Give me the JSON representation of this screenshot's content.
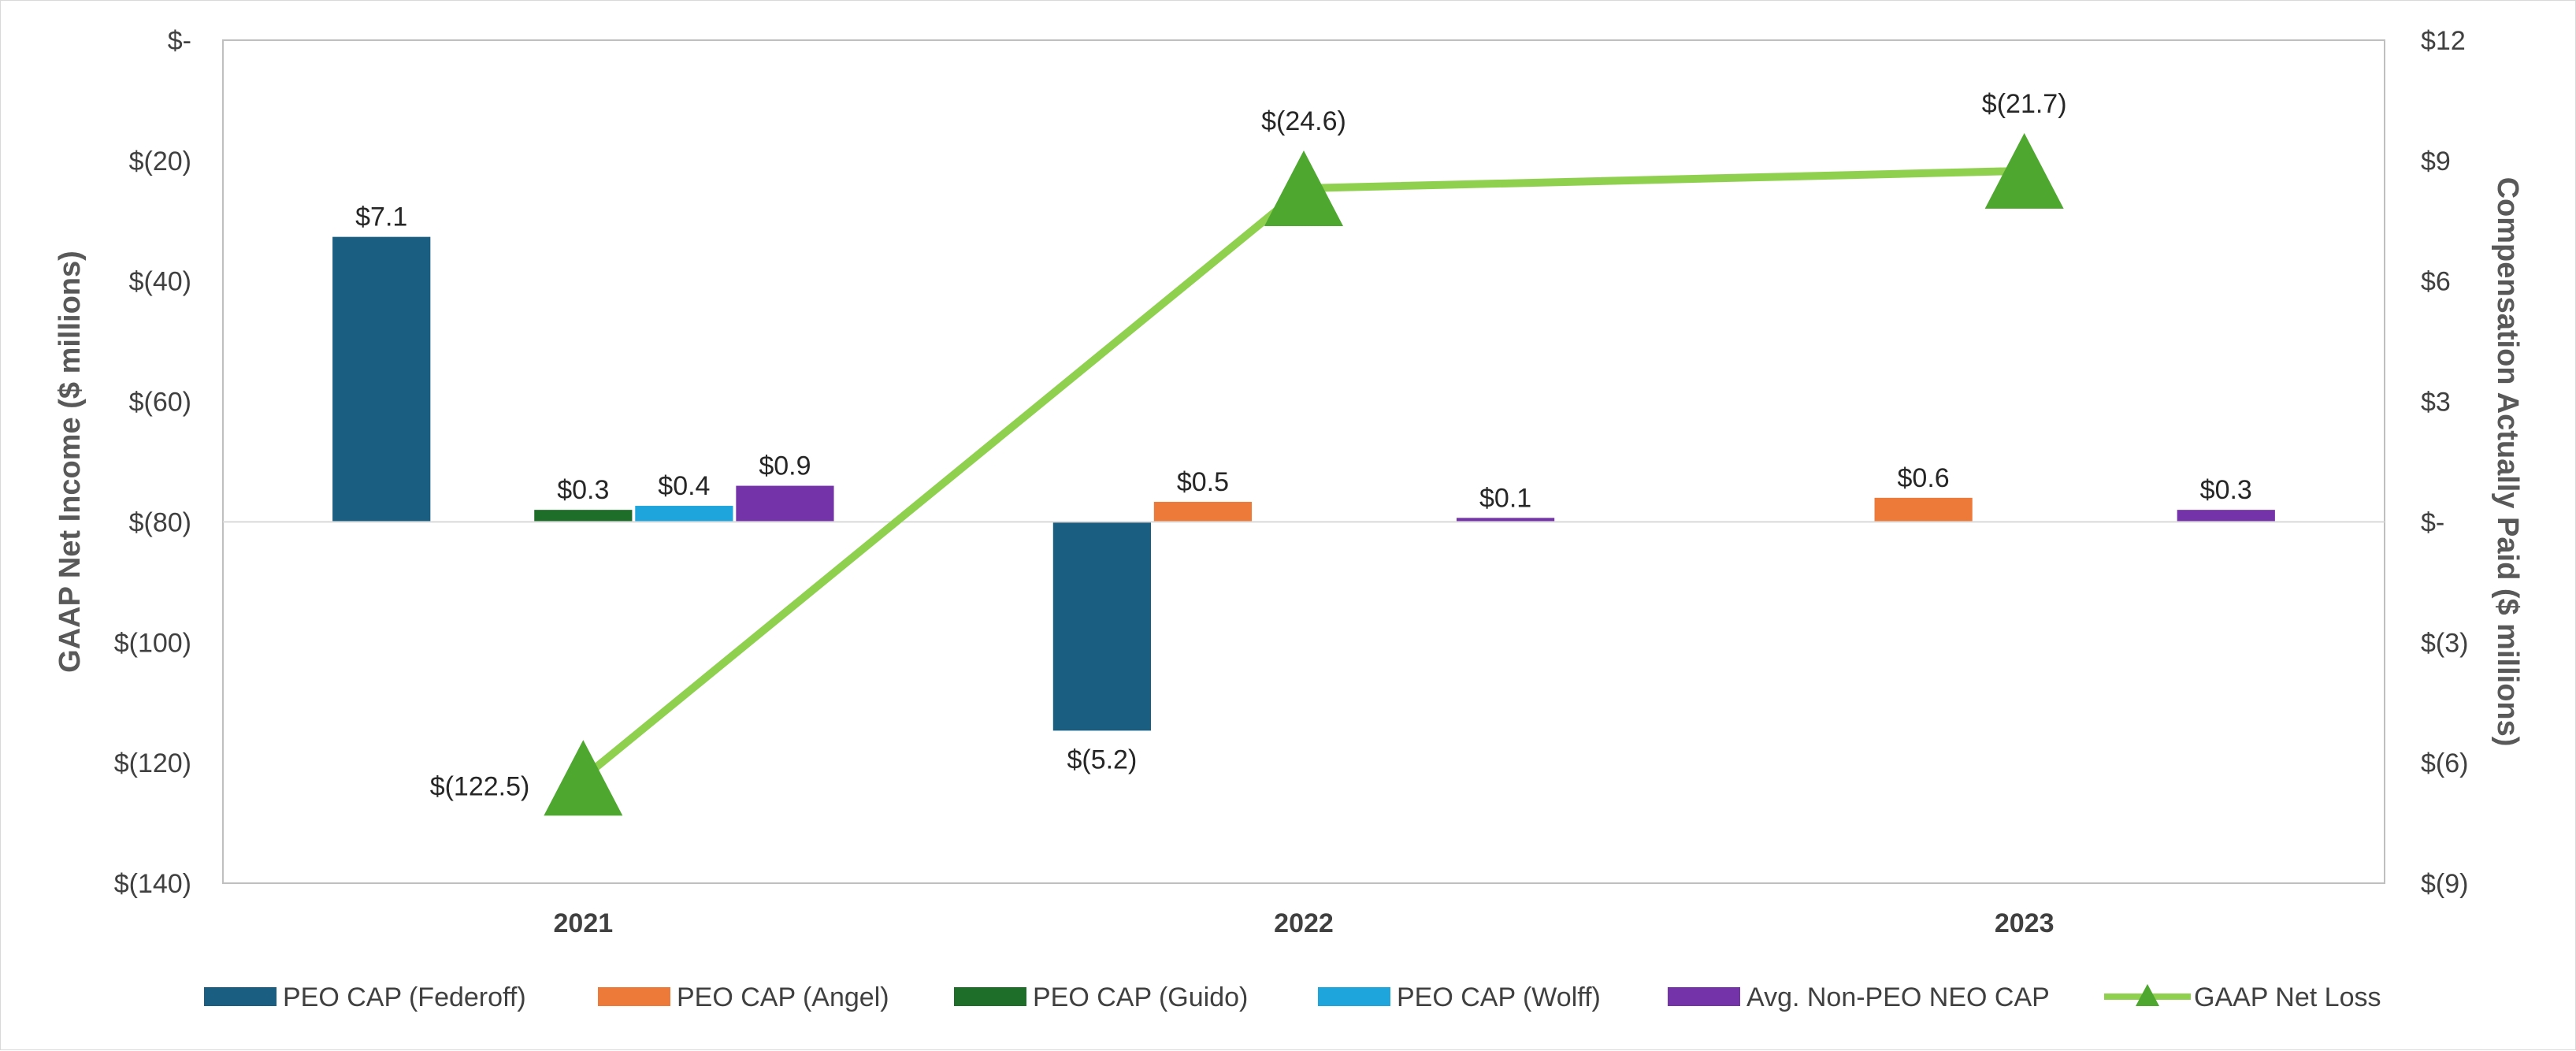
{
  "chart_data": {
    "type": "bar",
    "categories": [
      "2021",
      "2022",
      "2023"
    ],
    "ylabel_left": "GAAP Net Income ($ millions)",
    "ylabel_right": "Compensation Actually Paid ($ millions)",
    "left_axis": {
      "ylim": [
        -140,
        0
      ],
      "ticks": [
        0,
        -20,
        -40,
        -60,
        -80,
        -100,
        -120,
        -140
      ],
      "tick_labels": [
        "$-",
        "$(20)",
        "$(40)",
        "$(60)",
        "$(80)",
        "$(100)",
        "$(120)",
        "$(140)"
      ]
    },
    "right_axis": {
      "ylim": [
        -9,
        12
      ],
      "ticks": [
        12,
        9,
        6,
        3,
        0,
        -3,
        -6,
        -9
      ],
      "tick_labels": [
        "$12",
        "$9",
        "$6",
        "$3",
        "$-",
        "$(3)",
        "$(6)",
        "$(9)"
      ]
    },
    "bar_series": [
      {
        "name": "PEO CAP (Federoff)",
        "color": "#1a5e82",
        "values": [
          7.1,
          -5.2,
          null
        ],
        "labels": [
          "$7.1",
          "$(5.2)",
          ""
        ]
      },
      {
        "name": "PEO CAP (Angel)",
        "color": "#ee7a3a",
        "values": [
          null,
          0.5,
          0.6
        ],
        "labels": [
          "",
          "$0.5",
          "$0.6"
        ]
      },
      {
        "name": "PEO CAP (Guido)",
        "color": "#1e6e2a",
        "values": [
          0.3,
          null,
          null
        ],
        "labels": [
          "$0.3",
          "",
          ""
        ]
      },
      {
        "name": "PEO CAP (Wolff)",
        "color": "#1ea5dc",
        "values": [
          0.4,
          null,
          null
        ],
        "labels": [
          "$0.4",
          "",
          ""
        ]
      },
      {
        "name": "Avg. Non-PEO NEO CAP",
        "color": "#7433a8",
        "values": [
          0.9,
          0.1,
          0.3
        ],
        "labels": [
          "$0.9",
          "$0.1",
          "$0.3"
        ]
      }
    ],
    "line_series": {
      "name": "GAAP Net Loss",
      "axis": "left",
      "color": "#8fd14f",
      "marker_color": "#4ea72e",
      "values": [
        -122.5,
        -24.6,
        -21.7
      ],
      "labels": [
        "$(122.5)",
        "$(24.6)",
        "$(21.7)"
      ]
    },
    "grid": false,
    "legend_position": "bottom"
  }
}
